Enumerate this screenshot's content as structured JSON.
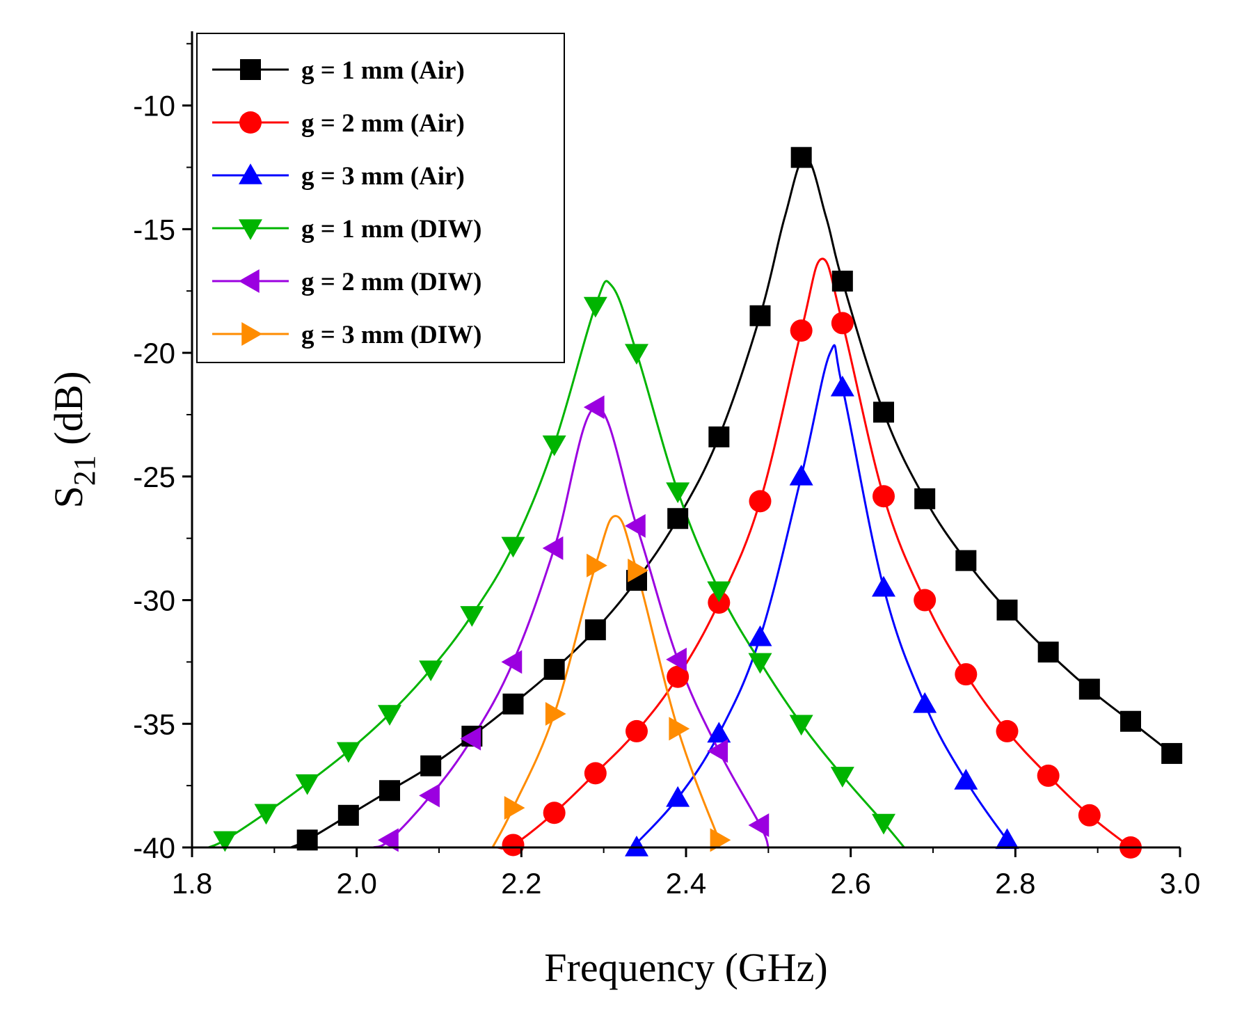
{
  "chart_data": {
    "type": "line",
    "title": "",
    "xlabel": "Frequency (GHz)",
    "ylabel_main": "S",
    "ylabel_sub": "21",
    "ylabel_tail": " (dB)",
    "xlim": [
      1.8,
      3.0
    ],
    "ylim": [
      -40,
      -7
    ],
    "xticks": [
      1.8,
      2.0,
      2.2,
      2.4,
      2.6,
      2.8,
      3.0
    ],
    "xtick_labels": [
      "1.8",
      "2.0",
      "2.2",
      "2.4",
      "2.6",
      "2.8",
      "3.0"
    ],
    "yticks": [
      -10,
      -15,
      -20,
      -25,
      -30,
      -35,
      -40
    ],
    "ytick_labels": [
      "-10",
      "-15",
      "-20",
      "-25",
      "-30",
      "-35",
      "-40"
    ],
    "legend_position": "top-left",
    "series": [
      {
        "name": "g = 1 mm (Air)",
        "color": "#000000",
        "marker": "square",
        "x": [
          1.92,
          1.94,
          1.99,
          2.04,
          2.09,
          2.14,
          2.19,
          2.24,
          2.29,
          2.34,
          2.39,
          2.44,
          2.49,
          2.52,
          2.545,
          2.57,
          2.59,
          2.64,
          2.69,
          2.74,
          2.79,
          2.84,
          2.89,
          2.94,
          2.99
        ],
        "y": [
          -40,
          -39.7,
          -38.7,
          -37.7,
          -36.7,
          -35.5,
          -34.2,
          -32.8,
          -31.2,
          -29.2,
          -26.7,
          -23.4,
          -18.5,
          -14.5,
          -12.1,
          -14.5,
          -17.1,
          -22.4,
          -25.9,
          -28.4,
          -30.4,
          -32.1,
          -33.6,
          -34.9,
          -36.2
        ],
        "markers_x": [
          1.94,
          1.99,
          2.04,
          2.09,
          2.14,
          2.19,
          2.24,
          2.29,
          2.34,
          2.39,
          2.44,
          2.49,
          2.54,
          2.59,
          2.64,
          2.69,
          2.74,
          2.79,
          2.84,
          2.89,
          2.94,
          2.99
        ],
        "markers_y": [
          -39.7,
          -38.7,
          -37.7,
          -36.7,
          -35.5,
          -34.2,
          -32.8,
          -31.2,
          -29.2,
          -26.7,
          -23.4,
          -18.5,
          -12.1,
          -17.1,
          -22.4,
          -25.9,
          -28.4,
          -30.4,
          -32.1,
          -33.6,
          -34.9,
          -36.2
        ]
      },
      {
        "name": "g = 2 mm (Air)",
        "color": "#ff0000",
        "marker": "circle",
        "x": [
          2.17,
          2.19,
          2.24,
          2.29,
          2.34,
          2.39,
          2.44,
          2.49,
          2.54,
          2.565,
          2.59,
          2.64,
          2.69,
          2.74,
          2.79,
          2.84,
          2.89,
          2.94
        ],
        "y": [
          -40,
          -39.9,
          -38.6,
          -37.0,
          -35.3,
          -33.1,
          -30.1,
          -26.0,
          -19.1,
          -16.2,
          -18.8,
          -25.8,
          -30.0,
          -33.0,
          -35.3,
          -37.1,
          -38.7,
          -40
        ],
        "markers_x": [
          2.19,
          2.24,
          2.29,
          2.34,
          2.39,
          2.44,
          2.49,
          2.54,
          2.59,
          2.64,
          2.69,
          2.74,
          2.79,
          2.84,
          2.89,
          2.94
        ],
        "markers_y": [
          -39.9,
          -38.6,
          -37.0,
          -35.3,
          -33.1,
          -30.1,
          -26.0,
          -19.1,
          -18.8,
          -25.8,
          -30.0,
          -33.0,
          -35.3,
          -37.1,
          -38.7,
          -40
        ]
      },
      {
        "name": "g = 3 mm (Air)",
        "color": "#0000ff",
        "marker": "triangle-up",
        "x": [
          2.335,
          2.39,
          2.44,
          2.49,
          2.54,
          2.575,
          2.59,
          2.64,
          2.69,
          2.74,
          2.79,
          2.8
        ],
        "y": [
          -40,
          -38.0,
          -35.4,
          -31.5,
          -25.0,
          -20.0,
          -21.4,
          -29.5,
          -34.2,
          -37.3,
          -39.7,
          -40
        ],
        "markers_x": [
          2.34,
          2.39,
          2.44,
          2.49,
          2.54,
          2.59,
          2.64,
          2.69,
          2.74,
          2.79
        ],
        "markers_y": [
          -40,
          -38.0,
          -35.4,
          -31.5,
          -25.0,
          -21.4,
          -29.5,
          -34.2,
          -37.3,
          -39.7
        ]
      },
      {
        "name": "g = 1 mm (DIW)",
        "color": "#00b400",
        "marker": "triangle-down",
        "x": [
          1.82,
          1.84,
          1.89,
          1.94,
          1.99,
          2.04,
          2.09,
          2.14,
          2.19,
          2.24,
          2.29,
          2.31,
          2.34,
          2.39,
          2.44,
          2.49,
          2.54,
          2.59,
          2.64,
          2.665
        ],
        "y": [
          -40,
          -39.7,
          -38.6,
          -37.4,
          -36.1,
          -34.6,
          -32.8,
          -30.6,
          -27.8,
          -23.7,
          -18.1,
          -17.3,
          -20.0,
          -25.6,
          -29.6,
          -32.5,
          -35.0,
          -37.1,
          -39.0,
          -40
        ],
        "markers_x": [
          1.84,
          1.89,
          1.94,
          1.99,
          2.04,
          2.09,
          2.14,
          2.19,
          2.24,
          2.29,
          2.34,
          2.39,
          2.44,
          2.49,
          2.54,
          2.59,
          2.64
        ],
        "markers_y": [
          -39.7,
          -38.6,
          -37.4,
          -36.1,
          -34.6,
          -32.8,
          -30.6,
          -27.8,
          -23.7,
          -18.1,
          -20.0,
          -25.6,
          -29.6,
          -32.5,
          -35.0,
          -37.1,
          -39.0
        ]
      },
      {
        "name": "g = 2 mm (DIW)",
        "color": "#9b00e0",
        "marker": "triangle-left",
        "x": [
          2.02,
          2.04,
          2.09,
          2.14,
          2.19,
          2.24,
          2.29,
          2.34,
          2.39,
          2.44,
          2.49,
          2.5
        ],
        "y": [
          -40,
          -39.7,
          -37.9,
          -35.6,
          -32.5,
          -27.9,
          -22.2,
          -27.0,
          -32.4,
          -36.1,
          -39.1,
          -40
        ],
        "markers_x": [
          2.04,
          2.09,
          2.14,
          2.19,
          2.24,
          2.29,
          2.34,
          2.39,
          2.44,
          2.49
        ],
        "markers_y": [
          -39.7,
          -37.9,
          -35.6,
          -32.5,
          -27.9,
          -22.2,
          -27.0,
          -32.4,
          -36.1,
          -39.1
        ]
      },
      {
        "name": "g = 3 mm (DIW)",
        "color": "#ff8c00",
        "marker": "triangle-right",
        "x": [
          2.165,
          2.19,
          2.24,
          2.29,
          2.315,
          2.34,
          2.39,
          2.44
        ],
        "y": [
          -40,
          -38.4,
          -34.6,
          -28.6,
          -26.6,
          -28.8,
          -35.2,
          -39.7
        ],
        "markers_x": [
          2.19,
          2.24,
          2.29,
          2.34,
          2.39,
          2.44
        ],
        "markers_y": [
          -38.4,
          -34.6,
          -28.6,
          -28.8,
          -35.2,
          -39.7
        ]
      }
    ]
  }
}
